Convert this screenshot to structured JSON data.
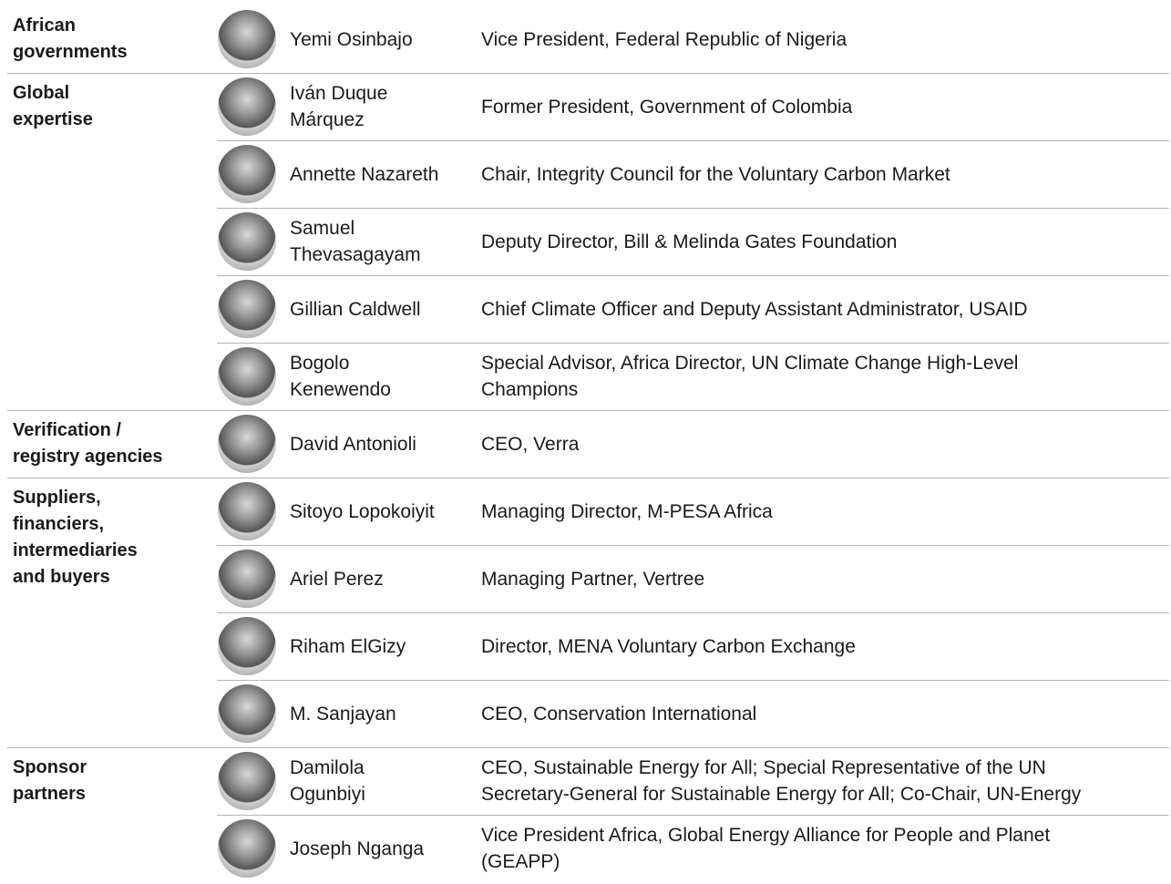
{
  "groups": [
    {
      "category": [
        "African",
        "governments"
      ],
      "people": [
        {
          "name": [
            "Yemi Osinbajo"
          ],
          "role": [
            "Vice President, Federal Republic of Nigeria"
          ]
        }
      ]
    },
    {
      "category": [
        "Global",
        "expertise"
      ],
      "people": [
        {
          "name": [
            "Iván Duque",
            "Márquez"
          ],
          "role": [
            "Former President, Government of Colombia"
          ]
        },
        {
          "name": [
            "Annette Nazareth"
          ],
          "role": [
            "Chair, Integrity Council for the Voluntary Carbon Market"
          ]
        },
        {
          "name": [
            "Samuel",
            "Thevasagayam"
          ],
          "role": [
            "Deputy Director, Bill & Melinda Gates Foundation"
          ]
        },
        {
          "name": [
            "Gillian Caldwell"
          ],
          "role": [
            "Chief Climate Officer and Deputy Assistant Administrator, USAID"
          ]
        },
        {
          "name": [
            "Bogolo",
            "Kenewendo"
          ],
          "role": [
            "Special Advisor, Africa Director, UN Climate Change High-Level",
            "Champions"
          ]
        }
      ]
    },
    {
      "category": [
        "Verification /",
        "registry agencies"
      ],
      "people": [
        {
          "name": [
            "David Antonioli"
          ],
          "role": [
            "CEO, Verra"
          ]
        }
      ]
    },
    {
      "category": [
        "Suppliers,",
        "financiers,",
        "intermediaries",
        "and buyers"
      ],
      "people": [
        {
          "name": [
            "Sitoyo Lopokoiyit"
          ],
          "role": [
            "Managing Director, M-PESA Africa"
          ]
        },
        {
          "name": [
            "Ariel Perez"
          ],
          "role": [
            "Managing Partner, Vertree"
          ]
        },
        {
          "name": [
            "Riham ElGizy"
          ],
          "role": [
            "Director, MENA Voluntary Carbon Exchange"
          ]
        },
        {
          "name": [
            "M. Sanjayan"
          ],
          "role": [
            "CEO, Conservation International"
          ]
        }
      ]
    },
    {
      "category": [
        "Sponsor",
        "partners"
      ],
      "people": [
        {
          "name": [
            "Damilola",
            "Ogunbiyi"
          ],
          "role": [
            "CEO, Sustainable Energy for All; Special Representative of the UN",
            "Secretary-General for Sustainable Energy for All; Co-Chair, UN-Energy"
          ]
        },
        {
          "name": [
            "Joseph Nganga"
          ],
          "role": [
            "Vice President Africa, Global Energy Alliance for People and Planet",
            "(GEAPP)"
          ]
        }
      ]
    }
  ]
}
